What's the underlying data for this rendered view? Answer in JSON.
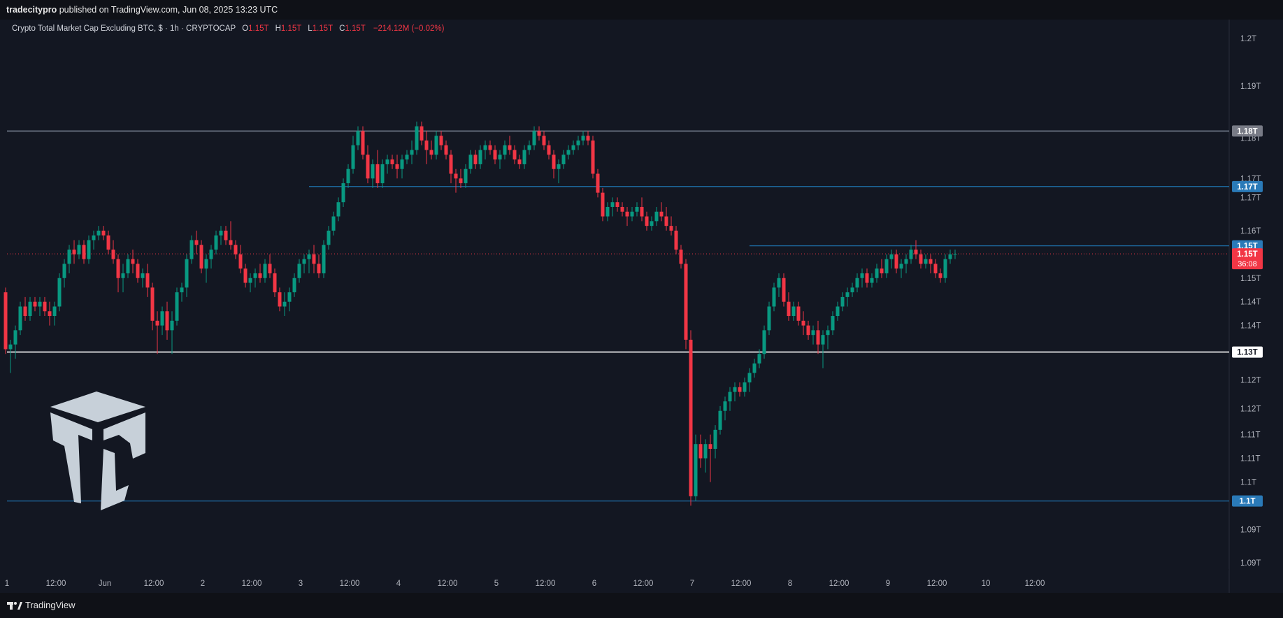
{
  "header": {
    "publisher": "tradecitypro",
    "published_text": "published on TradingView.com, Jun 08, 2025 13:23 UTC"
  },
  "legend": {
    "symbol": "Crypto Total Market Cap Excluding BTC, $ · 1h · CRYPTOCAP",
    "o_label": "O",
    "o_value": "1.15T",
    "h_label": "H",
    "h_value": "1.15T",
    "l_label": "L",
    "l_value": "1.15T",
    "c_label": "C",
    "c_value": "1.15T",
    "change": "−214.12M (−0.02%)"
  },
  "footer": {
    "brand": "TradingView"
  },
  "colors": {
    "up": "#089981",
    "down": "#f23645",
    "level_blue": "#2962ff",
    "level_line": "#1e6fa8",
    "white_line": "#ffffff",
    "gray_badge": "#787b86"
  },
  "chart_data": {
    "type": "candlestick",
    "ylim": [
      1.088,
      1.204
    ],
    "x_count": 210,
    "y_ticks": [
      {
        "label": "1.2T",
        "value": 1.2
      },
      {
        "label": "1.19T",
        "value": 1.19
      },
      {
        "label": "1.18T",
        "value": 1.179
      },
      {
        "label": "1.17T",
        "value": 1.1705
      },
      {
        "label": "1.17T",
        "value": 1.1665
      },
      {
        "label": "1.16T",
        "value": 1.1595
      },
      {
        "label": "1.15T",
        "value": 1.1495
      },
      {
        "label": "1.14T",
        "value": 1.1445
      },
      {
        "label": "1.14T",
        "value": 1.1395
      },
      {
        "label": "1.13T",
        "value": 1.1335
      },
      {
        "label": "1.12T",
        "value": 1.128
      },
      {
        "label": "1.12T",
        "value": 1.122
      },
      {
        "label": "1.11T",
        "value": 1.1165
      },
      {
        "label": "1.11T",
        "value": 1.1115
      },
      {
        "label": "1.1T",
        "value": 1.1065
      },
      {
        "label": "1.09T",
        "value": 1.0965
      },
      {
        "label": "1.09T",
        "value": 1.0895
      }
    ],
    "x_ticks": [
      {
        "label": "1",
        "index": 0
      },
      {
        "label": "12:00",
        "index": 10
      },
      {
        "label": "Jun",
        "index": 20
      },
      {
        "label": "12:00",
        "index": 30
      },
      {
        "label": "2",
        "index": 40
      },
      {
        "label": "12:00",
        "index": 50
      },
      {
        "label": "3",
        "index": 60
      },
      {
        "label": "12:00",
        "index": 70
      },
      {
        "label": "4",
        "index": 80
      },
      {
        "label": "12:00",
        "index": 90
      },
      {
        "label": "5",
        "index": 100
      },
      {
        "label": "12:00",
        "index": 110
      },
      {
        "label": "6",
        "index": 120
      },
      {
        "label": "12:00",
        "index": 130
      },
      {
        "label": "7",
        "index": 140
      },
      {
        "label": "12:00",
        "index": 150
      },
      {
        "label": "8",
        "index": 160
      },
      {
        "label": "12:00",
        "index": 170
      },
      {
        "label": "9",
        "index": 180
      },
      {
        "label": "12:00",
        "index": 190
      },
      {
        "label": "10",
        "index": 200
      },
      {
        "label": "12:00",
        "index": 210
      }
    ],
    "levels": [
      {
        "name": "resistance-1.18",
        "value": 1.1805,
        "badge": "1.18T",
        "style": "gray",
        "from_index": 0
      },
      {
        "name": "resistance-1.17",
        "value": 1.1688,
        "badge": "1.17T",
        "style": "blue",
        "from_index": 62
      },
      {
        "name": "resistance-1.15",
        "value": 1.1563,
        "badge": "1.15T",
        "style": "blue",
        "from_index": 152
      },
      {
        "name": "support-1.13",
        "value": 1.1339,
        "badge": "1.13T",
        "style": "white",
        "from_index": 0
      },
      {
        "name": "support-1.1",
        "value": 1.1025,
        "badge": "1.1T",
        "style": "blue",
        "from_index": 0
      }
    ],
    "current_price": {
      "value": 1.1546,
      "label": "1.15T",
      "countdown": "36:08"
    },
    "candles": [
      [
        1.1465,
        1.1475,
        1.1335,
        1.1345
      ],
      [
        1.1345,
        1.1365,
        1.1295,
        1.1355
      ],
      [
        1.1355,
        1.1395,
        1.1325,
        1.1385
      ],
      [
        1.1385,
        1.1445,
        1.1375,
        1.1435
      ],
      [
        1.1435,
        1.1455,
        1.1405,
        1.1415
      ],
      [
        1.1415,
        1.1455,
        1.1405,
        1.1445
      ],
      [
        1.1445,
        1.1455,
        1.1425,
        1.1435
      ],
      [
        1.1435,
        1.1455,
        1.1415,
        1.1445
      ],
      [
        1.1445,
        1.1455,
        1.1415,
        1.1425
      ],
      [
        1.1425,
        1.1445,
        1.1395,
        1.1415
      ],
      [
        1.1415,
        1.1445,
        1.1395,
        1.1435
      ],
      [
        1.1435,
        1.1505,
        1.1425,
        1.1495
      ],
      [
        1.1495,
        1.1535,
        1.1475,
        1.1525
      ],
      [
        1.1525,
        1.1565,
        1.1505,
        1.1555
      ],
      [
        1.1555,
        1.1575,
        1.1525,
        1.1545
      ],
      [
        1.1545,
        1.1575,
        1.1535,
        1.1565
      ],
      [
        1.1565,
        1.1575,
        1.1525,
        1.1535
      ],
      [
        1.1535,
        1.1585,
        1.1525,
        1.1575
      ],
      [
        1.1575,
        1.1595,
        1.1555,
        1.1585
      ],
      [
        1.1585,
        1.1605,
        1.1575,
        1.1595
      ],
      [
        1.1595,
        1.1605,
        1.1575,
        1.1585
      ],
      [
        1.1585,
        1.1595,
        1.1545,
        1.1555
      ],
      [
        1.1555,
        1.1575,
        1.1525,
        1.1535
      ],
      [
        1.1535,
        1.1545,
        1.1465,
        1.1495
      ],
      [
        1.1495,
        1.1525,
        1.1465,
        1.1505
      ],
      [
        1.1505,
        1.1545,
        1.1495,
        1.1535
      ],
      [
        1.1535,
        1.1555,
        1.1505,
        1.1525
      ],
      [
        1.1525,
        1.1535,
        1.1485,
        1.1495
      ],
      [
        1.1495,
        1.1515,
        1.1475,
        1.1505
      ],
      [
        1.1505,
        1.1525,
        1.1455,
        1.1475
      ],
      [
        1.1475,
        1.1485,
        1.1385,
        1.1405
      ],
      [
        1.1405,
        1.1425,
        1.1335,
        1.1395
      ],
      [
        1.1395,
        1.1435,
        1.1375,
        1.1425
      ],
      [
        1.1425,
        1.1445,
        1.1365,
        1.1385
      ],
      [
        1.1385,
        1.1425,
        1.1335,
        1.1405
      ],
      [
        1.1405,
        1.1475,
        1.1395,
        1.1465
      ],
      [
        1.1465,
        1.1485,
        1.1445,
        1.1475
      ],
      [
        1.1475,
        1.1545,
        1.1455,
        1.1535
      ],
      [
        1.1535,
        1.1585,
        1.1525,
        1.1575
      ],
      [
        1.1575,
        1.1595,
        1.1545,
        1.1565
      ],
      [
        1.1565,
        1.1575,
        1.1505,
        1.1515
      ],
      [
        1.1515,
        1.1545,
        1.1485,
        1.1535
      ],
      [
        1.1535,
        1.1565,
        1.1515,
        1.1555
      ],
      [
        1.1555,
        1.1595,
        1.1545,
        1.1585
      ],
      [
        1.1585,
        1.1605,
        1.1565,
        1.1595
      ],
      [
        1.1595,
        1.1605,
        1.1565,
        1.1575
      ],
      [
        1.1575,
        1.1615,
        1.1555,
        1.1565
      ],
      [
        1.1565,
        1.1575,
        1.1535,
        1.1545
      ],
      [
        1.1545,
        1.1565,
        1.1505,
        1.1515
      ],
      [
        1.1515,
        1.1525,
        1.1475,
        1.1485
      ],
      [
        1.1485,
        1.1505,
        1.1465,
        1.1495
      ],
      [
        1.1495,
        1.1515,
        1.1475,
        1.1505
      ],
      [
        1.1505,
        1.1525,
        1.1485,
        1.1495
      ],
      [
        1.1495,
        1.1535,
        1.1485,
        1.1525
      ],
      [
        1.1525,
        1.1545,
        1.1495,
        1.1505
      ],
      [
        1.1505,
        1.1515,
        1.1455,
        1.1465
      ],
      [
        1.1465,
        1.1475,
        1.1425,
        1.1435
      ],
      [
        1.1435,
        1.1465,
        1.1415,
        1.1445
      ],
      [
        1.1445,
        1.1475,
        1.1425,
        1.1465
      ],
      [
        1.1465,
        1.1505,
        1.1455,
        1.1495
      ],
      [
        1.1495,
        1.1535,
        1.1485,
        1.1525
      ],
      [
        1.1525,
        1.1545,
        1.1505,
        1.1535
      ],
      [
        1.1535,
        1.1555,
        1.1505,
        1.1545
      ],
      [
        1.1545,
        1.1565,
        1.1505,
        1.1525
      ],
      [
        1.1525,
        1.1545,
        1.1495,
        1.1505
      ],
      [
        1.1505,
        1.1575,
        1.1495,
        1.1565
      ],
      [
        1.1565,
        1.1605,
        1.1555,
        1.1595
      ],
      [
        1.1595,
        1.1635,
        1.1585,
        1.1625
      ],
      [
        1.1625,
        1.1665,
        1.1615,
        1.1655
      ],
      [
        1.1655,
        1.1705,
        1.1645,
        1.1695
      ],
      [
        1.1695,
        1.1735,
        1.1685,
        1.1725
      ],
      [
        1.1725,
        1.1795,
        1.1715,
        1.1775
      ],
      [
        1.1775,
        1.1815,
        1.1765,
        1.1805
      ],
      [
        1.1805,
        1.1815,
        1.1745,
        1.1755
      ],
      [
        1.1755,
        1.1775,
        1.1695,
        1.1705
      ],
      [
        1.1705,
        1.1745,
        1.1685,
        1.1735
      ],
      [
        1.1735,
        1.1765,
        1.1685,
        1.1695
      ],
      [
        1.1695,
        1.1745,
        1.1685,
        1.1735
      ],
      [
        1.1735,
        1.1755,
        1.1715,
        1.1745
      ],
      [
        1.1745,
        1.1755,
        1.1725,
        1.1735
      ],
      [
        1.1735,
        1.1755,
        1.1705,
        1.1725
      ],
      [
        1.1725,
        1.1755,
        1.1705,
        1.1745
      ],
      [
        1.1745,
        1.1765,
        1.1735,
        1.1755
      ],
      [
        1.1755,
        1.1785,
        1.1735,
        1.1765
      ],
      [
        1.1765,
        1.1825,
        1.1755,
        1.1815
      ],
      [
        1.1815,
        1.1825,
        1.1775,
        1.1785
      ],
      [
        1.1785,
        1.1805,
        1.1735,
        1.1765
      ],
      [
        1.1765,
        1.1785,
        1.1745,
        1.1755
      ],
      [
        1.1755,
        1.1805,
        1.1745,
        1.1795
      ],
      [
        1.1795,
        1.1805,
        1.1765,
        1.1775
      ],
      [
        1.1775,
        1.1785,
        1.1745,
        1.1755
      ],
      [
        1.1755,
        1.1765,
        1.1695,
        1.1715
      ],
      [
        1.1715,
        1.1725,
        1.1675,
        1.1705
      ],
      [
        1.1705,
        1.1725,
        1.1685,
        1.1695
      ],
      [
        1.1695,
        1.1735,
        1.1685,
        1.1725
      ],
      [
        1.1725,
        1.1765,
        1.1715,
        1.1755
      ],
      [
        1.1755,
        1.1765,
        1.1725,
        1.1735
      ],
      [
        1.1735,
        1.1775,
        1.1725,
        1.1765
      ],
      [
        1.1765,
        1.1785,
        1.1745,
        1.1775
      ],
      [
        1.1775,
        1.1785,
        1.1755,
        1.1765
      ],
      [
        1.1765,
        1.1775,
        1.1735,
        1.1745
      ],
      [
        1.1745,
        1.1765,
        1.1725,
        1.1755
      ],
      [
        1.1755,
        1.1785,
        1.1745,
        1.1775
      ],
      [
        1.1775,
        1.1795,
        1.1755,
        1.1765
      ],
      [
        1.1765,
        1.1775,
        1.1735,
        1.1745
      ],
      [
        1.1745,
        1.1755,
        1.1725,
        1.1735
      ],
      [
        1.1735,
        1.1775,
        1.1725,
        1.1765
      ],
      [
        1.1765,
        1.1785,
        1.1755,
        1.1775
      ],
      [
        1.1775,
        1.1815,
        1.1765,
        1.1805
      ],
      [
        1.1805,
        1.1815,
        1.1785,
        1.1795
      ],
      [
        1.1795,
        1.1805,
        1.1765,
        1.1775
      ],
      [
        1.1775,
        1.1785,
        1.1745,
        1.1755
      ],
      [
        1.1755,
        1.1765,
        1.1705,
        1.1725
      ],
      [
        1.1725,
        1.1745,
        1.1695,
        1.1735
      ],
      [
        1.1735,
        1.1765,
        1.1725,
        1.1755
      ],
      [
        1.1755,
        1.1775,
        1.1745,
        1.1765
      ],
      [
        1.1765,
        1.1785,
        1.1755,
        1.1775
      ],
      [
        1.1775,
        1.1795,
        1.1765,
        1.1785
      ],
      [
        1.1785,
        1.1805,
        1.1775,
        1.1795
      ],
      [
        1.1795,
        1.1805,
        1.1775,
        1.1785
      ],
      [
        1.1785,
        1.1795,
        1.1705,
        1.1715
      ],
      [
        1.1715,
        1.1725,
        1.1665,
        1.1675
      ],
      [
        1.1675,
        1.1685,
        1.1615,
        1.1625
      ],
      [
        1.1625,
        1.1655,
        1.1615,
        1.1645
      ],
      [
        1.1645,
        1.1665,
        1.1625,
        1.1655
      ],
      [
        1.1655,
        1.1665,
        1.1635,
        1.1645
      ],
      [
        1.1645,
        1.1655,
        1.1625,
        1.1635
      ],
      [
        1.1635,
        1.1645,
        1.1605,
        1.1625
      ],
      [
        1.1625,
        1.1645,
        1.1615,
        1.1635
      ],
      [
        1.1635,
        1.1655,
        1.1625,
        1.1645
      ],
      [
        1.1645,
        1.1665,
        1.1615,
        1.1625
      ],
      [
        1.1625,
        1.1635,
        1.1595,
        1.1605
      ],
      [
        1.1605,
        1.1625,
        1.1595,
        1.1615
      ],
      [
        1.1615,
        1.1645,
        1.1605,
        1.1635
      ],
      [
        1.1635,
        1.1655,
        1.1615,
        1.1625
      ],
      [
        1.1625,
        1.1645,
        1.1595,
        1.1605
      ],
      [
        1.1605,
        1.1625,
        1.1585,
        1.1595
      ],
      [
        1.1595,
        1.1605,
        1.1545,
        1.1555
      ],
      [
        1.1555,
        1.1565,
        1.1515,
        1.1525
      ],
      [
        1.1525,
        1.1535,
        1.1345,
        1.1365
      ],
      [
        1.1365,
        1.1385,
        1.1015,
        1.1035
      ],
      [
        1.1035,
        1.1165,
        1.1025,
        1.1145
      ],
      [
        1.1145,
        1.1165,
        1.1095,
        1.1115
      ],
      [
        1.1115,
        1.1155,
        1.1085,
        1.1145
      ],
      [
        1.1145,
        1.1165,
        1.1065,
        1.1135
      ],
      [
        1.1135,
        1.1185,
        1.1115,
        1.1175
      ],
      [
        1.1175,
        1.1225,
        1.1165,
        1.1215
      ],
      [
        1.1215,
        1.1245,
        1.1195,
        1.1235
      ],
      [
        1.1235,
        1.1265,
        1.1215,
        1.1255
      ],
      [
        1.1255,
        1.1275,
        1.1235,
        1.1265
      ],
      [
        1.1265,
        1.1275,
        1.1245,
        1.1255
      ],
      [
        1.1255,
        1.1285,
        1.1245,
        1.1275
      ],
      [
        1.1275,
        1.1305,
        1.1255,
        1.1295
      ],
      [
        1.1295,
        1.1325,
        1.1285,
        1.1315
      ],
      [
        1.1315,
        1.1345,
        1.1305,
        1.1335
      ],
      [
        1.1335,
        1.1395,
        1.1325,
        1.1385
      ],
      [
        1.1385,
        1.1445,
        1.1375,
        1.1435
      ],
      [
        1.1435,
        1.1485,
        1.1425,
        1.1475
      ],
      [
        1.1475,
        1.1505,
        1.1455,
        1.1495
      ],
      [
        1.1495,
        1.1505,
        1.1435,
        1.1445
      ],
      [
        1.1445,
        1.1465,
        1.1405,
        1.1415
      ],
      [
        1.1415,
        1.1445,
        1.1405,
        1.1435
      ],
      [
        1.1435,
        1.1445,
        1.1395,
        1.1405
      ],
      [
        1.1405,
        1.1425,
        1.1375,
        1.1395
      ],
      [
        1.1395,
        1.1405,
        1.1365,
        1.1375
      ],
      [
        1.1375,
        1.1395,
        1.1355,
        1.1385
      ],
      [
        1.1385,
        1.1405,
        1.1335,
        1.1355
      ],
      [
        1.1355,
        1.1385,
        1.1305,
        1.1375
      ],
      [
        1.1375,
        1.1395,
        1.1345,
        1.1385
      ],
      [
        1.1385,
        1.1425,
        1.1375,
        1.1415
      ],
      [
        1.1415,
        1.1445,
        1.1405,
        1.1435
      ],
      [
        1.1435,
        1.1465,
        1.1425,
        1.1455
      ],
      [
        1.1455,
        1.1475,
        1.1435,
        1.1465
      ],
      [
        1.1465,
        1.1485,
        1.1455,
        1.1475
      ],
      [
        1.1475,
        1.1505,
        1.1465,
        1.1495
      ],
      [
        1.1495,
        1.1515,
        1.1475,
        1.1505
      ],
      [
        1.1505,
        1.1515,
        1.1475,
        1.1485
      ],
      [
        1.1485,
        1.1505,
        1.1475,
        1.1495
      ],
      [
        1.1495,
        1.1525,
        1.1485,
        1.1515
      ],
      [
        1.1515,
        1.1535,
        1.1495,
        1.1505
      ],
      [
        1.1505,
        1.1545,
        1.1495,
        1.1535
      ],
      [
        1.1535,
        1.1555,
        1.1515,
        1.1545
      ],
      [
        1.1545,
        1.1555,
        1.1505,
        1.1515
      ],
      [
        1.1515,
        1.1535,
        1.1495,
        1.1525
      ],
      [
        1.1525,
        1.1545,
        1.1505,
        1.1535
      ],
      [
        1.1535,
        1.1565,
        1.1525,
        1.1555
      ],
      [
        1.1555,
        1.1575,
        1.1535,
        1.1545
      ],
      [
        1.1545,
        1.1555,
        1.1515,
        1.1525
      ],
      [
        1.1525,
        1.1545,
        1.1515,
        1.1535
      ],
      [
        1.1535,
        1.1545,
        1.1505,
        1.1525
      ],
      [
        1.1525,
        1.1535,
        1.1495,
        1.1505
      ],
      [
        1.1505,
        1.1515,
        1.1485,
        1.1495
      ],
      [
        1.1495,
        1.1545,
        1.1485,
        1.1535
      ],
      [
        1.1535,
        1.1555,
        1.1525,
        1.1545
      ],
      [
        1.1545,
        1.1555,
        1.1535,
        1.1546
      ]
    ]
  }
}
